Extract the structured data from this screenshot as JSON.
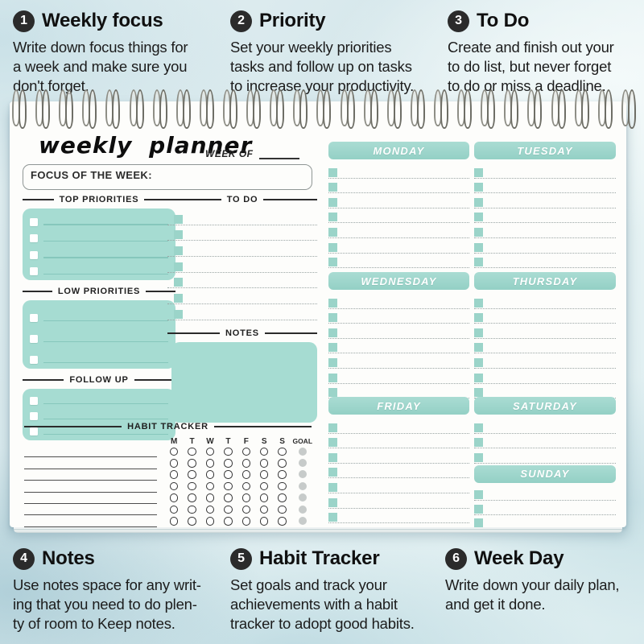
{
  "colors": {
    "teal": "#a6dcd2",
    "teal-strong": "#9bd4c9",
    "teal-line": "#86c7bc",
    "dotted": "#9aa5a4",
    "badge": "#2b2b2b",
    "ink": "#1d1d1d",
    "page": "#fdfdfb"
  },
  "callouts_top": [
    {
      "num": "1",
      "title": "Weekly focus",
      "body": "Write down focus things for\na week and make sure you\ndon't forget."
    },
    {
      "num": "2",
      "title": "Priority",
      "body": "Set your weekly priorities\ntasks and follow up on tasks\nto increase your productivity."
    },
    {
      "num": "3",
      "title": "To Do",
      "body": "Create and finish out your\nto do list, but never forget\nto do or miss a deadline."
    }
  ],
  "callouts_bottom": [
    {
      "num": "4",
      "title": "Notes",
      "body": "Use notes space for any writ-\ning that you need to do plen-\nty of room to Keep notes."
    },
    {
      "num": "5",
      "title": "Habit Tracker",
      "body": "Set goals and track your\nachievements with a habit\ntracker to adopt good habits."
    },
    {
      "num": "6",
      "title": "Week Day",
      "body": "Write down your daily plan,\nand get it done."
    }
  ],
  "planner": {
    "title": "weekly planner",
    "week_of_label": "WEEK OF",
    "focus_label": "FOCUS OF THE WEEK:",
    "headers": {
      "top_priorities": "TOP PRIORITIES",
      "low_priorities": "LOW PRIORITIES",
      "follow_up": "FOLLOW UP",
      "to_do": "TO DO",
      "notes": "NOTES",
      "habit_tracker": "HABIT TRACKER"
    },
    "habit_day_labels": [
      "M",
      "T",
      "W",
      "T",
      "F",
      "S",
      "S",
      "GOAL"
    ],
    "days": [
      {
        "name": "MONDAY",
        "rows": 7
      },
      {
        "name": "TUESDAY",
        "rows": 7
      },
      {
        "name": "WEDNESDAY",
        "rows": 7
      },
      {
        "name": "THURSDAY",
        "rows": 7
      },
      {
        "name": "FRIDAY",
        "rows": 7
      },
      {
        "name": "SATURDAY",
        "rows": 3
      },
      {
        "name": "SUNDAY",
        "rows": 3
      }
    ],
    "counts": {
      "spiral_coils": 27,
      "top_priority_rows": 4,
      "low_priority_rows": 3,
      "follow_up_rows": 3,
      "todo_rows": 7,
      "habit_rows": 7,
      "habit_day_cols": 7
    }
  }
}
